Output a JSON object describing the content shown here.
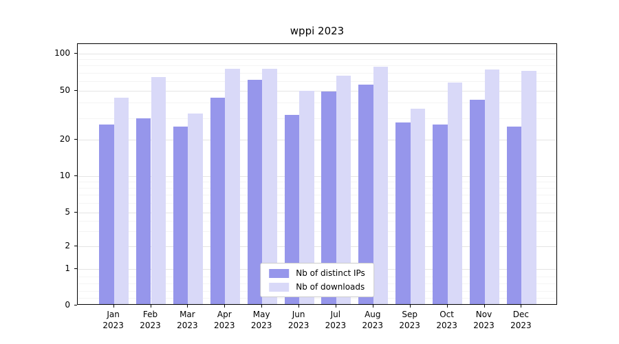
{
  "chart_data": {
    "type": "bar",
    "title": "wppi 2023",
    "categories": [
      "Jan",
      "Feb",
      "Mar",
      "Apr",
      "May",
      "Jun",
      "Jul",
      "Aug",
      "Sep",
      "Oct",
      "Nov",
      "Dec"
    ],
    "year": "2023",
    "series": [
      {
        "name": "Nb of distinct IPs",
        "color": "#9696eb",
        "values": [
          26,
          29,
          25,
          43,
          60,
          31,
          48,
          55,
          27,
          26,
          41,
          25
        ]
      },
      {
        "name": "Nb of downloads",
        "color": "#d9d9f8",
        "values": [
          43,
          63,
          32,
          74,
          74,
          49,
          65,
          76,
          35,
          57,
          73,
          71
        ]
      }
    ],
    "yscale": "symlog",
    "yticks": [
      0,
      1,
      2,
      5,
      10,
      20,
      50,
      100
    ],
    "ylim": [
      0,
      115
    ],
    "grid": true,
    "legend_position": "lower center",
    "xlabel": "",
    "ylabel": ""
  }
}
